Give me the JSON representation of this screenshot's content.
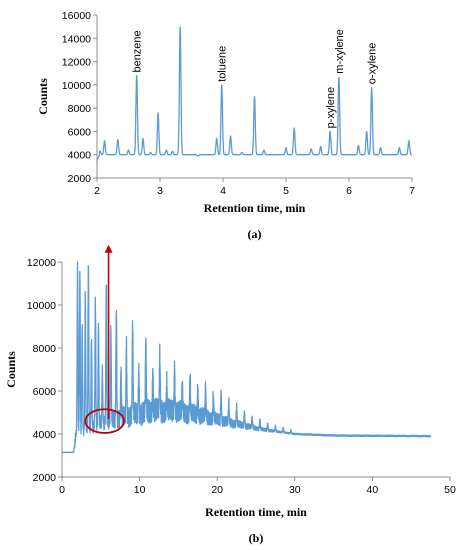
{
  "chart_data": [
    {
      "type": "line",
      "panel_label": "(a)",
      "xlabel": "Retention time, min",
      "ylabel": "Counts",
      "xlim": [
        2,
        7
      ],
      "ylim": [
        2000,
        16000
      ],
      "x_ticks": [
        "2",
        "3",
        "4",
        "5",
        "6",
        "7"
      ],
      "y_ticks": [
        "2000",
        "4000",
        "6000",
        "8000",
        "10000",
        "12000",
        "14000",
        "16000"
      ],
      "grid": false,
      "legend": "none",
      "color": "#5b9bd5",
      "baseline": 4000,
      "annotations": [
        {
          "text": "benzene",
          "x": 2.63
        },
        {
          "text": "toluene",
          "x": 3.98
        },
        {
          "text": "p-xylene",
          "x": 5.7
        },
        {
          "text": "m-xylene",
          "x": 5.84
        },
        {
          "text": "o-xylene",
          "x": 6.36
        }
      ],
      "peaks": [
        {
          "x": 2.05,
          "y": 4300
        },
        {
          "x": 2.12,
          "y": 5200
        },
        {
          "x": 2.33,
          "y": 5300
        },
        {
          "x": 2.5,
          "y": 4400
        },
        {
          "x": 2.63,
          "y": 10800
        },
        {
          "x": 2.73,
          "y": 5400
        },
        {
          "x": 2.85,
          "y": 4200
        },
        {
          "x": 2.97,
          "y": 7600
        },
        {
          "x": 3.1,
          "y": 4400
        },
        {
          "x": 3.2,
          "y": 4300
        },
        {
          "x": 3.32,
          "y": 15000
        },
        {
          "x": 3.45,
          "y": 4000
        },
        {
          "x": 3.6,
          "y": 3900
        },
        {
          "x": 3.9,
          "y": 5400
        },
        {
          "x": 3.98,
          "y": 10000
        },
        {
          "x": 4.12,
          "y": 5600
        },
        {
          "x": 4.3,
          "y": 4200
        },
        {
          "x": 4.5,
          "y": 9000
        },
        {
          "x": 4.65,
          "y": 4400
        },
        {
          "x": 5.0,
          "y": 4600
        },
        {
          "x": 5.13,
          "y": 6300
        },
        {
          "x": 5.4,
          "y": 4500
        },
        {
          "x": 5.55,
          "y": 4700
        },
        {
          "x": 5.7,
          "y": 6000
        },
        {
          "x": 5.84,
          "y": 10700
        },
        {
          "x": 6.15,
          "y": 4800
        },
        {
          "x": 6.28,
          "y": 6000
        },
        {
          "x": 6.36,
          "y": 9800
        },
        {
          "x": 6.5,
          "y": 4600
        },
        {
          "x": 6.8,
          "y": 4600
        },
        {
          "x": 6.95,
          "y": 5200
        }
      ]
    },
    {
      "type": "line",
      "panel_label": "(b)",
      "xlabel": "Retention time, min",
      "ylabel": "Counts",
      "xlim": [
        0,
        50
      ],
      "ylim": [
        2000,
        12000
      ],
      "x_ticks": [
        "0",
        "10",
        "20",
        "30",
        "40",
        "50"
      ],
      "y_ticks": [
        "2000",
        "4000",
        "6000",
        "8000",
        "10000",
        "12000"
      ],
      "grid": false,
      "legend": "none",
      "color": "#5b9bd5",
      "annotation_color": "#c00000",
      "annotations": [
        {
          "shape": "ellipse",
          "cx": 5.5,
          "cy": 4600,
          "rx": 2.5,
          "ry": 550
        },
        {
          "shape": "arrow",
          "x": 6.0,
          "y_from": 4700,
          "y_to": 12800
        }
      ],
      "envelope": [
        {
          "x": 0.0,
          "y": 3150
        },
        {
          "x": 1.5,
          "y": 3150
        },
        {
          "x": 1.8,
          "y": 4000
        },
        {
          "x": 3.0,
          "y": 4200
        },
        {
          "x": 5.0,
          "y": 4500
        },
        {
          "x": 8.0,
          "y": 4800
        },
        {
          "x": 12.0,
          "y": 5100
        },
        {
          "x": 15.0,
          "y": 5050
        },
        {
          "x": 18.0,
          "y": 4850
        },
        {
          "x": 22.0,
          "y": 4500
        },
        {
          "x": 26.0,
          "y": 4200
        },
        {
          "x": 30.0,
          "y": 4000
        },
        {
          "x": 35.0,
          "y": 3930
        },
        {
          "x": 47.5,
          "y": 3900
        }
      ],
      "peaks": [
        {
          "x": 2.0,
          "y": 12000
        },
        {
          "x": 2.3,
          "y": 11600
        },
        {
          "x": 2.6,
          "y": 9000
        },
        {
          "x": 3.0,
          "y": 10500
        },
        {
          "x": 3.4,
          "y": 12000
        },
        {
          "x": 3.8,
          "y": 8500
        },
        {
          "x": 4.3,
          "y": 10300
        },
        {
          "x": 4.7,
          "y": 9000
        },
        {
          "x": 5.2,
          "y": 7000
        },
        {
          "x": 5.7,
          "y": 11000
        },
        {
          "x": 6.3,
          "y": 8800
        },
        {
          "x": 7.0,
          "y": 9800
        },
        {
          "x": 7.6,
          "y": 7000
        },
        {
          "x": 8.3,
          "y": 8200
        },
        {
          "x": 9.1,
          "y": 9300
        },
        {
          "x": 9.9,
          "y": 6900
        },
        {
          "x": 10.8,
          "y": 8400
        },
        {
          "x": 11.7,
          "y": 6800
        },
        {
          "x": 12.6,
          "y": 7800
        },
        {
          "x": 13.5,
          "y": 6400
        },
        {
          "x": 14.5,
          "y": 7100
        },
        {
          "x": 15.5,
          "y": 6300
        },
        {
          "x": 16.5,
          "y": 6700
        },
        {
          "x": 17.5,
          "y": 6100
        },
        {
          "x": 18.5,
          "y": 6200
        },
        {
          "x": 19.5,
          "y": 5800
        },
        {
          "x": 20.5,
          "y": 5900
        },
        {
          "x": 21.5,
          "y": 5500
        },
        {
          "x": 22.5,
          "y": 5300
        },
        {
          "x": 23.5,
          "y": 5000
        },
        {
          "x": 24.5,
          "y": 4800
        },
        {
          "x": 25.5,
          "y": 4700
        },
        {
          "x": 26.5,
          "y": 4500
        },
        {
          "x": 27.5,
          "y": 4400
        },
        {
          "x": 28.5,
          "y": 4300
        },
        {
          "x": 29.5,
          "y": 4200
        }
      ]
    }
  ]
}
